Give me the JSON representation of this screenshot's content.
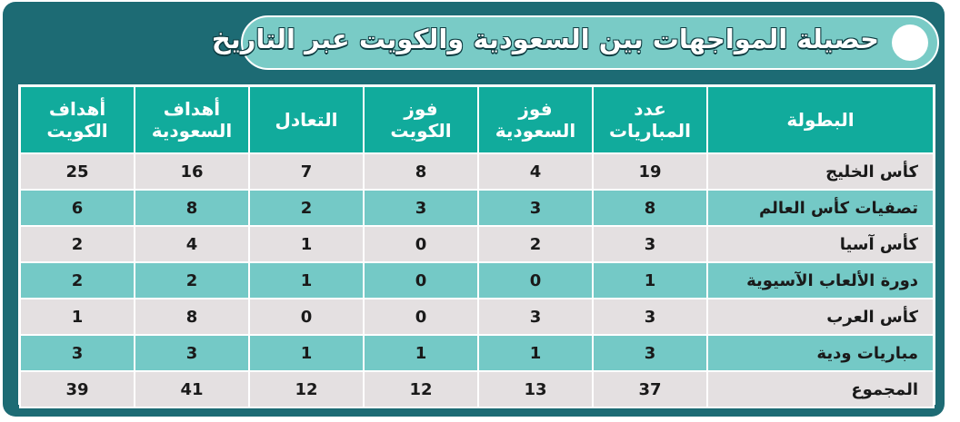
{
  "title": "حصيلة المواجهات بين السعودية والكويت عبر التاريخ",
  "headers": [
    "البطولة",
    "عدد\nالمباريات",
    "فوز\nالسعودية",
    "فوز\nالكويت",
    "التعادل",
    "أهداف\nالسعودية",
    "أهداف\nالكويت"
  ],
  "rows": [
    [
      "كأس الخليج",
      "19",
      "4",
      "8",
      "7",
      "16",
      "25"
    ],
    [
      "تصفيات كأس العالم",
      "8",
      "3",
      "3",
      "2",
      "8",
      "6"
    ],
    [
      "كأس آسيا",
      "3",
      "2",
      "0",
      "1",
      "4",
      "2"
    ],
    [
      "دورة الألعاب الآسيوية",
      "1",
      "0",
      "0",
      "1",
      "2",
      "2"
    ],
    [
      "كأس العرب",
      "3",
      "3",
      "0",
      "0",
      "8",
      "1"
    ],
    [
      "مباريات ودية",
      "3",
      "1",
      "1",
      "1",
      "3",
      "3"
    ]
  ],
  "total": [
    "المجموع",
    "37",
    "13",
    "12",
    "12",
    "41",
    "39"
  ],
  "colors": {
    "frame": "#1d6b74",
    "header": "#11ab9c",
    "row_light": "#e4e0e1",
    "row_teal": "#74c9c6",
    "title_pill": "#79cbc6"
  }
}
